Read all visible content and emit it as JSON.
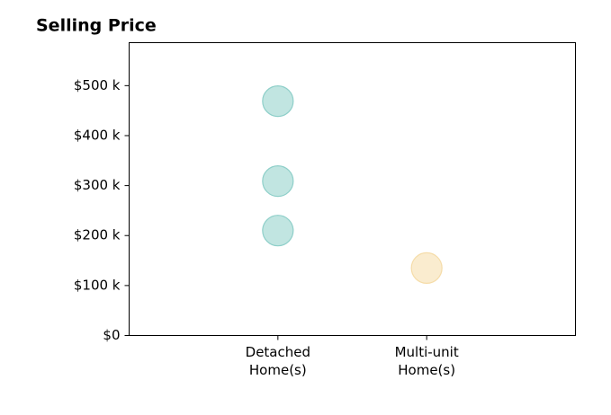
{
  "chart_data": {
    "type": "strip",
    "title": "Selling Price",
    "groups": [
      {
        "label": [
          "Detached",
          "Home(s)"
        ],
        "color": "#8ecfc9",
        "values": [
          469000,
          309000,
          210000
        ]
      },
      {
        "label": [
          "Multi-unit",
          "Home(s)"
        ],
        "color": "#f5dca8",
        "values": [
          135000
        ]
      }
    ],
    "ylim": [
      0,
      586000
    ],
    "yticks": [
      {
        "value": 0,
        "label": "$0"
      },
      {
        "value": 100000,
        "label": "$100 k"
      },
      {
        "value": 200000,
        "label": "$200 k"
      },
      {
        "value": 300000,
        "label": "$300 k"
      },
      {
        "value": 400000,
        "label": "$400 k"
      },
      {
        "value": 500000,
        "label": "$500 k"
      }
    ]
  }
}
